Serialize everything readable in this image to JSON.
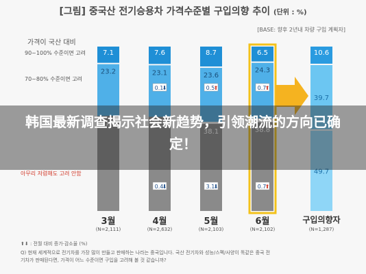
{
  "title": "[그림] 중국산 전기승용차 가격수준별 구입의향 추이",
  "title_unit": "(단위 : %)",
  "base_note": "[BASE: 향후 2년내 차량 구입 계획자]",
  "price_heading": "가격이 국산 대비",
  "row_labels": [
    "90~100% 수준이면 고려",
    "70~80% 수준이면 고려",
    "아무리 저렴해도 고려 안함"
  ],
  "headline": "韩国最新调查揭示社会新趋势，引领潮流的方向已确定！",
  "footnotes": [
    "⬆⬇ : 전월 대비 증가·감소율 (%)",
    "Q) 현재 세계적으로 전기차를 가장 많이 만들고 판매하는 나라는 중국입니다. 국산 전기차와 성능/스펙/사양이 똑같은 중국 전",
    "기차가 판매된다면, 가격이 어느 수준이면 구입을 고려해 볼 것 같습니까?"
  ],
  "colors": {
    "top": "#1f8fd6",
    "mid": "#4fb0e8",
    "bottom": "#8a8a8a",
    "target_top": "#2a9be0",
    "target_mid": "#6cc6f2",
    "target_bottom": "#8fd6f7",
    "highlight": "#f3c21b",
    "arrow": "#f5b320"
  },
  "chart_data": {
    "type": "bar",
    "stacked": true,
    "categories": [
      "3월",
      "4월",
      "5월",
      "6월",
      "구입의향자"
    ],
    "category_n": [
      "(N=2,111)",
      "(N=2,632)",
      "(N=2,103)",
      "(N=2,102)",
      "(N=1,287)"
    ],
    "series": [
      {
        "name": "90~100% 수준이면 고려",
        "values": [
          7.1,
          7.6,
          8.7,
          6.5,
          10.6
        ]
      },
      {
        "name": "70~80% 수준이면 고려",
        "values": [
          23.2,
          23.1,
          23.6,
          24.3,
          39.7
        ]
      },
      {
        "name": "아무리 저렴해도 고려 안함",
        "values": [
          41.6,
          41.2,
          38.1,
          38.8,
          49.7
        ]
      }
    ],
    "changes": [
      {
        "category": "4월",
        "series": "70~80% 수준이면 고려",
        "label": "0.1",
        "direction": "down"
      },
      {
        "category": "4월",
        "series": "아무리 저렴해도 고려 안함",
        "label": "0.4",
        "direction": "down"
      },
      {
        "category": "5월",
        "series": "70~80% 수준이면 고려",
        "label": "0.5",
        "direction": "up"
      },
      {
        "category": "5월",
        "series": "아무리 저렴해도 고려 안함",
        "label": "3.1",
        "direction": "down"
      },
      {
        "category": "6월",
        "series": "70~80% 수준이면 고려",
        "label": "0.7",
        "direction": "up"
      },
      {
        "category": "6월",
        "series": "아무리 저렴해도 고려 안함",
        "label": "0.7",
        "direction": "up"
      }
    ],
    "highlighted_category": "6월"
  }
}
